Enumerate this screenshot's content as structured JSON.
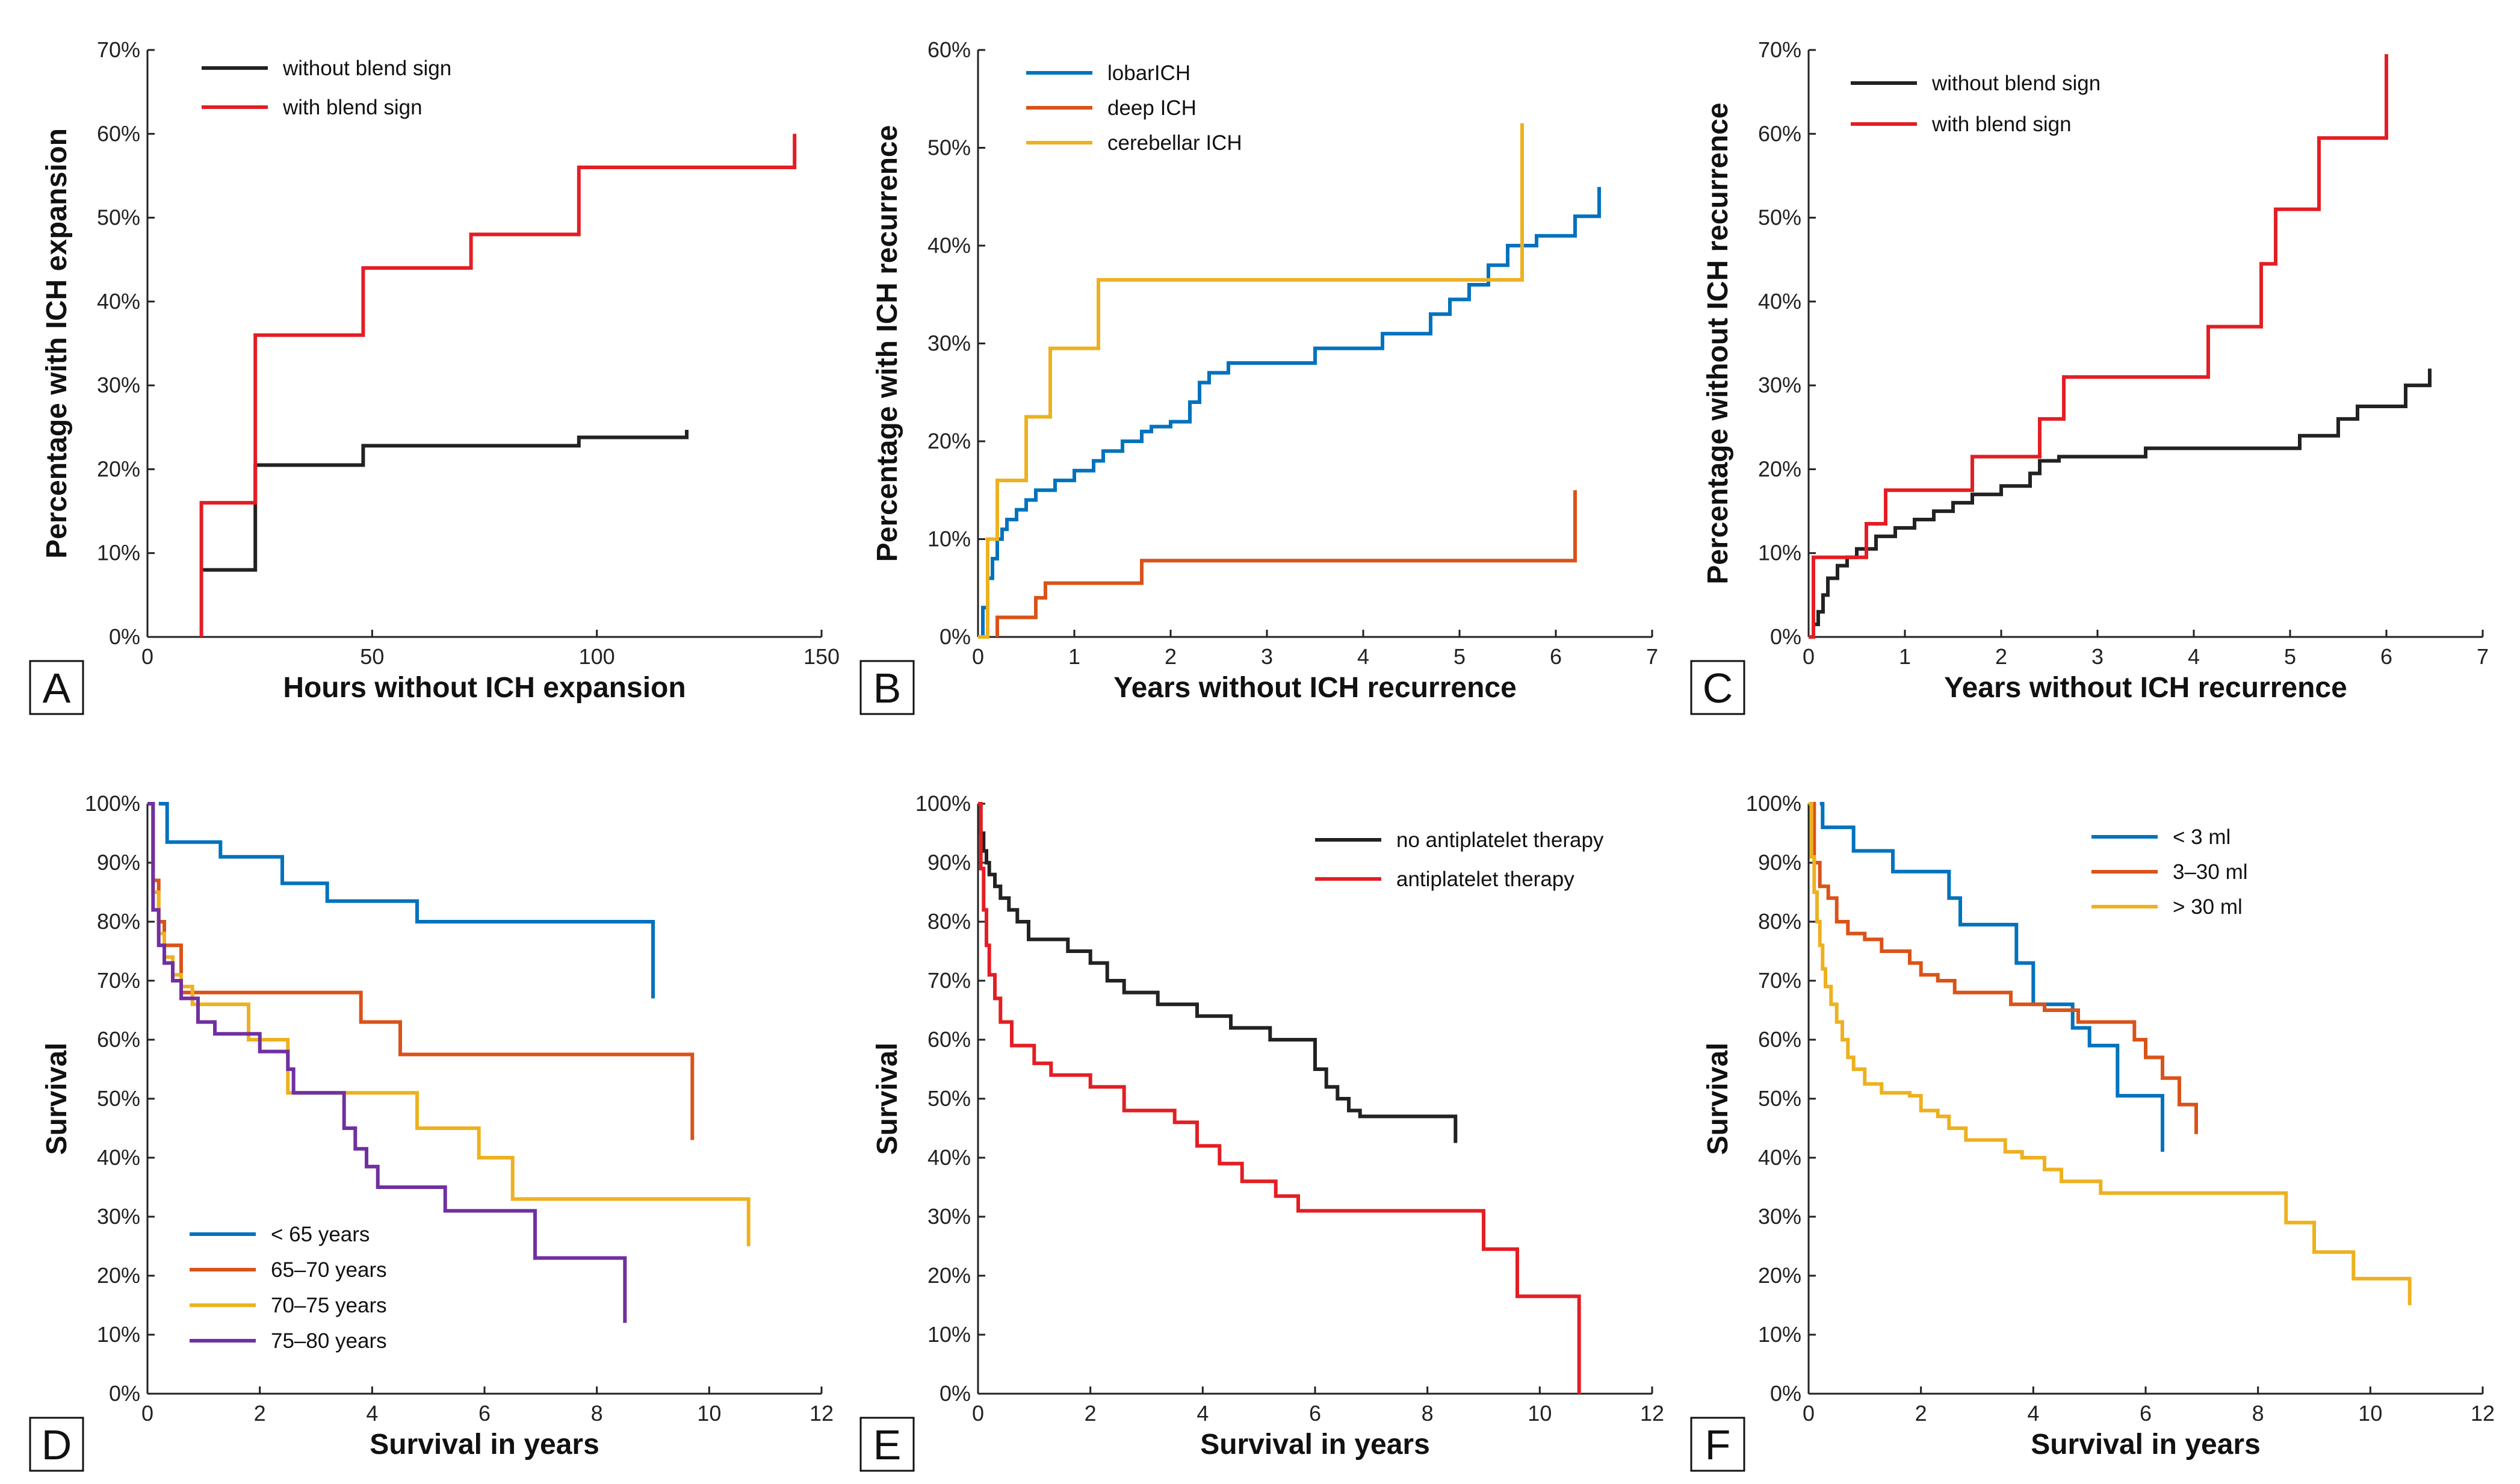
{
  "chart_data": [
    {
      "id": "A",
      "panel_label": "A",
      "type": "line",
      "step": true,
      "xlabel": "Hours without ICH expansion",
      "ylabel": "Percentage with ICH expansion",
      "xlim": [
        0,
        150
      ],
      "ylim": [
        0,
        70
      ],
      "xticks": [
        0,
        50,
        100,
        150
      ],
      "yticks": [
        0,
        10,
        20,
        30,
        40,
        50,
        60,
        70
      ],
      "yformat": "percent",
      "legend_position": "top-left",
      "series": [
        {
          "name": "without blend sign",
          "color": "#222222",
          "x": [
            12,
            24,
            24,
            48,
            48,
            96,
            96,
            120,
            120
          ],
          "y": [
            8,
            8,
            20.5,
            20.5,
            22.8,
            22.8,
            23.8,
            23.8,
            24.7
          ]
        },
        {
          "name": "with blend sign",
          "color": "#e31e24",
          "x": [
            12,
            12,
            24,
            24,
            48,
            48,
            72,
            72,
            96,
            96,
            144,
            144
          ],
          "y": [
            0,
            16,
            16,
            36,
            36,
            44,
            44,
            48,
            48,
            56,
            56,
            60
          ]
        }
      ]
    },
    {
      "id": "B",
      "panel_label": "B",
      "type": "line",
      "step": true,
      "xlabel": "Years without ICH recurrence",
      "ylabel": "Percentage with ICH recurrence",
      "xlim": [
        0,
        7
      ],
      "ylim": [
        0,
        60
      ],
      "xticks": [
        0,
        1,
        2,
        3,
        4,
        5,
        6,
        7
      ],
      "yticks": [
        0,
        10,
        20,
        30,
        40,
        50,
        60
      ],
      "yformat": "percent",
      "legend_position": "top-left",
      "series": [
        {
          "name": "lobarICH",
          "color": "#0072bd",
          "x": [
            0,
            0.05,
            0.1,
            0.15,
            0.2,
            0.25,
            0.3,
            0.4,
            0.5,
            0.6,
            0.8,
            1.0,
            1.2,
            1.3,
            1.5,
            1.7,
            1.8,
            2.0,
            2.2,
            2.3,
            2.4,
            2.6,
            3.0,
            3.5,
            4.2,
            4.7,
            4.9,
            5.1,
            5.3,
            5.5,
            5.8,
            6.2,
            6.45
          ],
          "y": [
            0,
            3,
            6,
            8,
            10,
            11,
            12,
            13,
            14,
            15,
            16,
            17,
            18,
            19,
            20,
            21,
            21.5,
            22,
            24,
            26,
            27,
            28,
            28,
            29.5,
            31,
            33,
            34.5,
            36,
            38,
            40,
            41,
            43,
            46
          ]
        },
        {
          "name": "deep ICH",
          "color": "#d95319",
          "x": [
            0.2,
            0.2,
            0.6,
            0.6,
            0.7,
            0.7,
            1.7,
            1.7,
            6.2,
            6.2
          ],
          "y": [
            0,
            2,
            2,
            4,
            4,
            5.5,
            5.5,
            7.8,
            7.8,
            15
          ]
        },
        {
          "name": "cerebellar ICH",
          "color": "#edb120",
          "x": [
            0,
            0.1,
            0.2,
            0.5,
            0.75,
            1.25,
            5.65,
            5.65
          ],
          "y": [
            0,
            10,
            16,
            22.5,
            29.5,
            36.5,
            36.5,
            52.5
          ]
        }
      ]
    },
    {
      "id": "C",
      "panel_label": "C",
      "type": "line",
      "step": true,
      "xlabel": "Years without ICH recurrence",
      "ylabel": "Percentage without ICH recurrence",
      "xlim": [
        0,
        7
      ],
      "ylim": [
        0,
        70
      ],
      "xticks": [
        0,
        1,
        2,
        3,
        4,
        5,
        6,
        7
      ],
      "yticks": [
        0,
        10,
        20,
        30,
        40,
        50,
        60,
        70
      ],
      "yformat": "percent",
      "legend_position": "top-left",
      "series": [
        {
          "name": "without blend sign",
          "color": "#222222",
          "x": [
            0,
            0.05,
            0.1,
            0.15,
            0.2,
            0.3,
            0.4,
            0.5,
            0.7,
            0.9,
            1.1,
            1.3,
            1.5,
            1.7,
            2.0,
            2.3,
            2.4,
            2.6,
            3.0,
            3.5,
            4.5,
            5.1,
            5.5,
            5.7,
            5.9,
            6.2,
            6.45
          ],
          "y": [
            0,
            1.5,
            3,
            5,
            7,
            8.5,
            9.5,
            10.5,
            12,
            13,
            14,
            15,
            16,
            17,
            18,
            19.5,
            21,
            21.5,
            21.5,
            22.5,
            22.5,
            24,
            26,
            27.5,
            27.5,
            30,
            32
          ]
        },
        {
          "name": "with blend sign",
          "color": "#e31e24",
          "x": [
            0,
            0.05,
            0.6,
            0.8,
            1.7,
            2.4,
            2.65,
            4.15,
            4.7,
            4.85,
            5.3,
            6.0
          ],
          "y": [
            0,
            9.5,
            13.5,
            17.5,
            21.5,
            26,
            31,
            37,
            44.5,
            51,
            59.5,
            69.5
          ]
        }
      ]
    },
    {
      "id": "D",
      "panel_label": "D",
      "type": "line",
      "step": true,
      "xlabel": "Survival in years",
      "ylabel": "Survival",
      "xlim": [
        0,
        12
      ],
      "ylim": [
        0,
        100
      ],
      "xticks": [
        0,
        2,
        4,
        6,
        8,
        10,
        12
      ],
      "yticks": [
        0,
        10,
        20,
        30,
        40,
        50,
        60,
        70,
        80,
        90,
        100
      ],
      "yformat": "percent",
      "legend_position": "bottom-left",
      "series": [
        {
          "name": "< 65 years",
          "color": "#0072bd",
          "x": [
            0.2,
            0.35,
            1.3,
            2.4,
            3.2,
            4.8,
            9.0
          ],
          "y": [
            100,
            93.5,
            91,
            86.5,
            83.5,
            80,
            67
          ]
        },
        {
          "name": "65–70 years",
          "color": "#d95319",
          "x": [
            0,
            0.1,
            0.2,
            0.3,
            0.6,
            3.8,
            4.5,
            9.7
          ],
          "y": [
            100,
            87,
            80,
            76,
            68,
            63,
            57.5,
            43
          ]
        },
        {
          "name": "70–75 years",
          "color": "#edb120",
          "x": [
            0,
            0.1,
            0.2,
            0.3,
            0.45,
            0.6,
            0.8,
            1.8,
            2.5,
            3.2,
            4.8,
            5.9,
            6.5,
            10.7
          ],
          "y": [
            100,
            85,
            78,
            74,
            71,
            69,
            66,
            60,
            51,
            51,
            45,
            40,
            33,
            25
          ]
        },
        {
          "name": "75–80 years",
          "color": "#7030a0",
          "x": [
            0,
            0.1,
            0.2,
            0.3,
            0.45,
            0.6,
            0.9,
            1.2,
            2.0,
            2.5,
            2.6,
            3.5,
            3.7,
            3.9,
            4.1,
            5.3,
            6.9,
            8.5
          ],
          "y": [
            100,
            82,
            76,
            73,
            70,
            67,
            63,
            61,
            58,
            55,
            51,
            45,
            41.5,
            38.5,
            35,
            31,
            23,
            12
          ]
        }
      ]
    },
    {
      "id": "E",
      "panel_label": "E",
      "type": "line",
      "step": true,
      "xlabel": "Survival in years",
      "ylabel": "Survival",
      "xlim": [
        0,
        12
      ],
      "ylim": [
        0,
        100
      ],
      "xticks": [
        0,
        2,
        4,
        6,
        8,
        10,
        12
      ],
      "yticks": [
        0,
        10,
        20,
        30,
        40,
        50,
        60,
        70,
        80,
        90,
        100
      ],
      "yformat": "percent",
      "legend_position": "top-right",
      "series": [
        {
          "name": "no antiplatelet therapy",
          "color": "#222222",
          "x": [
            0,
            0.05,
            0.1,
            0.15,
            0.2,
            0.3,
            0.4,
            0.55,
            0.7,
            0.9,
            1.6,
            2.0,
            2.3,
            2.6,
            3.2,
            3.9,
            4.5,
            5.2,
            6.0,
            6.2,
            6.4,
            6.6,
            6.8,
            8.5
          ],
          "y": [
            100,
            95,
            92,
            90,
            88,
            86,
            84,
            82,
            80,
            77,
            75,
            73,
            70,
            68,
            66,
            64,
            62,
            60,
            55,
            52,
            50,
            48,
            47,
            42.5
          ]
        },
        {
          "name": "antiplatelet therapy",
          "color": "#e31e24",
          "x": [
            0,
            0.05,
            0.1,
            0.15,
            0.2,
            0.3,
            0.4,
            0.6,
            1.0,
            1.3,
            2.0,
            2.6,
            3.5,
            3.9,
            4.3,
            4.7,
            5.3,
            5.7,
            9.0,
            9.6,
            10.7
          ],
          "y": [
            100,
            89,
            82,
            76,
            71,
            67,
            63,
            59,
            56,
            54,
            52,
            48,
            46,
            42,
            39,
            36,
            33.5,
            31,
            24.5,
            16.5,
            0
          ]
        }
      ]
    },
    {
      "id": "F",
      "panel_label": "F",
      "type": "line",
      "step": true,
      "xlabel": "Survival in years",
      "ylabel": "Survival",
      "xlim": [
        0,
        12
      ],
      "ylim": [
        0,
        100
      ],
      "xticks": [
        0,
        2,
        4,
        6,
        8,
        10,
        12
      ],
      "yticks": [
        0,
        10,
        20,
        30,
        40,
        50,
        60,
        70,
        80,
        90,
        100
      ],
      "yformat": "percent",
      "legend_position": "top-center",
      "series": [
        {
          "name": "< 3 ml",
          "color": "#0072bd",
          "x": [
            0.2,
            0.25,
            0.8,
            1.5,
            2.5,
            2.7,
            3.7,
            4.0,
            4.7,
            5.0,
            5.5,
            6.3
          ],
          "y": [
            100,
            96,
            92,
            88.5,
            84,
            79.5,
            73,
            66,
            62,
            59,
            50.5,
            41
          ]
        },
        {
          "name": "3–30 ml",
          "color": "#d95319",
          "x": [
            0,
            0.1,
            0.2,
            0.35,
            0.5,
            0.7,
            1.0,
            1.3,
            1.8,
            2.0,
            2.3,
            2.6,
            3.0,
            3.6,
            4.2,
            4.8,
            5.1,
            5.8,
            6.0,
            6.3,
            6.6,
            6.9
          ],
          "y": [
            100,
            90,
            86,
            84,
            80,
            78,
            77,
            75,
            73,
            71,
            70,
            68,
            68,
            66,
            65,
            63,
            63,
            60,
            57,
            53.5,
            49,
            44
          ]
        },
        {
          "name": "> 30 ml",
          "color": "#edb120",
          "x": [
            0,
            0.05,
            0.1,
            0.15,
            0.2,
            0.25,
            0.3,
            0.4,
            0.5,
            0.6,
            0.7,
            0.8,
            1.0,
            1.3,
            1.8,
            2.0,
            2.3,
            2.5,
            2.8,
            3.3,
            3.5,
            3.8,
            4.2,
            4.5,
            5.2,
            8.5,
            9.0,
            9.7,
            10.7
          ],
          "y": [
            100,
            91,
            85,
            80,
            76,
            72,
            69,
            66,
            63,
            60,
            57,
            55,
            52.5,
            51,
            50.5,
            48,
            47,
            45,
            43,
            43,
            41,
            40,
            38,
            36,
            34,
            29,
            24,
            19.5,
            15
          ]
        }
      ]
    }
  ]
}
